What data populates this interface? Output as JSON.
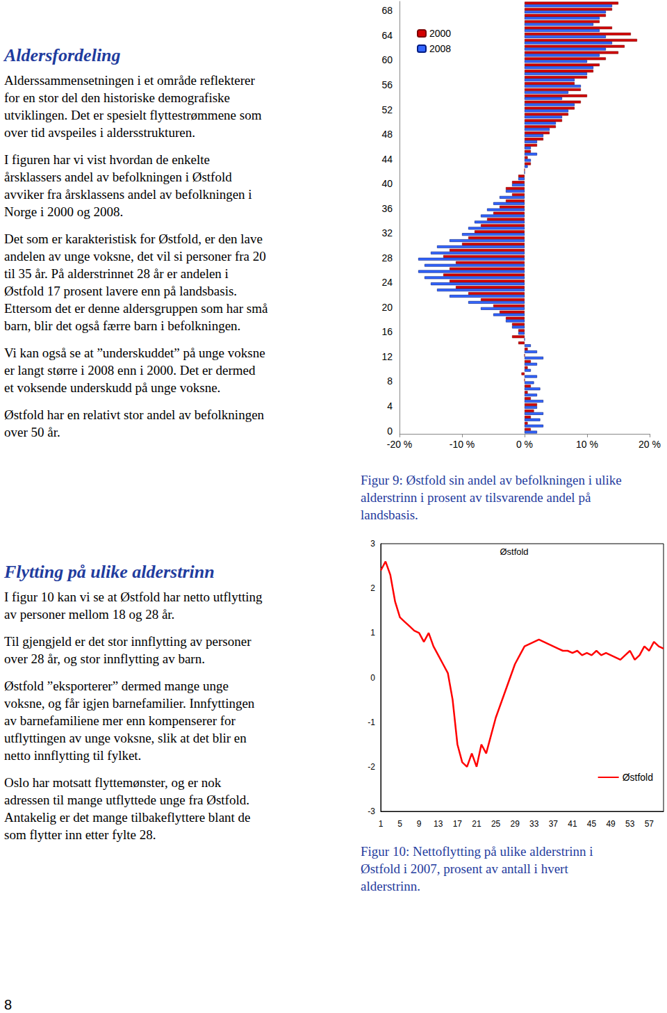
{
  "section1": {
    "heading": "Aldersfordeling",
    "paragraphs": [
      [
        "Alderssammensetningen i et område reflekterer",
        "for en stor del den historiske demografiske",
        "utviklingen. Det er spesielt flyttestrømmene som",
        "over tid avspeiles i aldersstrukturen."
      ],
      [
        "I figuren har vi vist hvordan de enkelte",
        "årsklassers andel av befolkningen i Østfold",
        "avviker fra årsklassens andel av befolkningen i",
        "Norge i 2000 og 2008."
      ],
      [
        "Det som er karakteristisk for Østfold, er den lave",
        "andelen av unge voksne, det vil si personer fra 20",
        "til 35 år. På alderstrinnet 28 år er andelen i",
        "Østfold 17 prosent lavere enn på landsbasis.",
        "Ettersom det er denne aldersgruppen som har små",
        "barn, blir det også færre barn i befolkningen."
      ],
      [
        "Vi kan også se at ”underskuddet” på unge voksne",
        "er langt større i 2008 enn i 2000. Det er dermed",
        "et voksende underskudd på unge voksne."
      ],
      [
        "Østfold har en relativt stor andel av befolkningen",
        "over 50 år."
      ]
    ]
  },
  "section2": {
    "heading": "Flytting på ulike alderstrinn",
    "paragraphs": [
      [
        "I figur 10 kan vi se at Østfold har netto utflytting",
        "av personer mellom 18 og 28 år."
      ],
      [
        "Til gjengjeld er det stor innflytting av personer",
        "over 28 år, og stor innflytting av barn."
      ],
      [
        "Østfold ”eksporterer” dermed mange unge",
        "voksne, og får igjen barnefamilier. Innfyttingen",
        "av barnefamiliene mer enn kompenserer for",
        "utflyttingen av unge voksne, slik at det blir en",
        "netto innflytting til fylket."
      ],
      [
        "Oslo har motsatt flyttemønster, og er nok",
        "adressen til mange utflyttede unge fra Østfold.",
        "Antakelig er det mange tilbakeflyttere blant de",
        "som flytter inn etter fylte 28."
      ]
    ]
  },
  "captions": [
    [
      "Figur 9: Østfold sin andel av befolkningen i ulike",
      "alderstrinn i prosent av tilsvarende andel på",
      "landsbasis."
    ],
    [
      "Figur 10: Nettoflytting på ulike alderstrinn i",
      "Østfold i 2007, prosent av antall i hvert",
      "alderstrinn."
    ]
  ],
  "page_number": "8",
  "chart_data": [
    {
      "type": "bar",
      "orientation": "horizontal",
      "categories": [
        0,
        null,
        null,
        null,
        4,
        null,
        null,
        null,
        8,
        null,
        null,
        null,
        12,
        null,
        null,
        null,
        16,
        null,
        null,
        null,
        20,
        null,
        null,
        null,
        24,
        null,
        null,
        null,
        28,
        null,
        null,
        null,
        32,
        null,
        null,
        null,
        36,
        null,
        null,
        null,
        40,
        null,
        null,
        null,
        44,
        null,
        null,
        null,
        48,
        null,
        null,
        null,
        52,
        null,
        null,
        null,
        56,
        null,
        null,
        null,
        60,
        null,
        null,
        null,
        64,
        null,
        null,
        null,
        68,
        null
      ],
      "series": [
        {
          "name": "2000",
          "color": "#d40000",
          "values": [
            1,
            0.5,
            1,
            1.5,
            2,
            1,
            0.5,
            1,
            0,
            -0.5,
            0.5,
            1,
            0,
            0.5,
            -1,
            -2,
            -1,
            -2,
            -3,
            -4,
            -5,
            -7,
            -9,
            -11,
            -12,
            -13,
            -12,
            -11,
            -13,
            -12,
            -10,
            -9,
            -8,
            -7,
            -6,
            -5,
            -4,
            -3,
            -2,
            -3,
            -2,
            -1,
            0,
            1,
            0.5,
            1,
            2,
            3,
            4,
            5,
            6,
            7,
            8,
            9,
            10,
            9,
            8,
            10,
            11,
            12,
            13,
            15,
            16,
            18,
            17,
            14,
            12,
            13,
            14,
            15
          ]
        },
        {
          "name": "2008",
          "color": "#3366ff",
          "values": [
            2,
            3,
            2.5,
            3,
            2,
            3,
            2,
            2.5,
            1.5,
            2,
            1,
            2,
            3,
            2,
            1,
            0,
            -1,
            -2,
            -3,
            -5,
            -7,
            -9,
            -12,
            -14,
            -15,
            -16,
            -17,
            -16,
            -17,
            -15,
            -14,
            -12,
            -10,
            -9,
            -8,
            -7,
            -6,
            -5,
            -4,
            -3,
            -2,
            -1,
            0,
            0.5,
            1,
            2,
            1,
            2,
            3,
            4,
            5,
            6,
            7,
            8,
            6,
            7,
            9,
            8,
            10,
            11,
            10,
            12,
            13,
            14,
            13,
            12,
            11,
            12,
            13,
            14
          ]
        }
      ],
      "xlim": [
        -20,
        20
      ],
      "xticks": [
        {
          "value": -20,
          "label": "-20 %"
        },
        {
          "value": -10,
          "label": "-10 %"
        },
        {
          "value": 0,
          "label": "0 %"
        },
        {
          "value": 10,
          "label": "10 %"
        },
        {
          "value": 20,
          "label": "20 %"
        }
      ],
      "legend": "top-left",
      "grid": false
    },
    {
      "type": "line",
      "title": "Østfold",
      "categories": [
        1,
        null,
        null,
        null,
        5,
        null,
        null,
        null,
        9,
        null,
        null,
        null,
        13,
        null,
        null,
        null,
        17,
        null,
        null,
        null,
        21,
        null,
        null,
        null,
        25,
        null,
        null,
        null,
        29,
        null,
        null,
        null,
        33,
        null,
        null,
        null,
        37,
        null,
        null,
        null,
        41,
        null,
        null,
        null,
        45,
        null,
        null,
        null,
        49,
        null,
        null,
        null,
        53,
        null,
        null,
        null,
        57,
        null,
        null,
        null
      ],
      "series": [
        {
          "name": "Østfold",
          "color": "#ff0000",
          "values": [
            2.4,
            2.6,
            2.3,
            1.7,
            1.35,
            1.25,
            1.15,
            1.05,
            1.0,
            0.8,
            1.0,
            0.7,
            0.5,
            0.3,
            0.1,
            -0.5,
            -1.5,
            -1.9,
            -2.0,
            -1.7,
            -2.0,
            -1.5,
            -1.7,
            -1.3,
            -0.9,
            -0.6,
            -0.3,
            0.0,
            0.3,
            0.5,
            0.7,
            0.75,
            0.8,
            0.85,
            0.8,
            0.75,
            0.7,
            0.65,
            0.6,
            0.6,
            0.55,
            0.6,
            0.5,
            0.55,
            0.5,
            0.6,
            0.5,
            0.55,
            0.5,
            0.45,
            0.4,
            0.5,
            0.6,
            0.4,
            0.5,
            0.7,
            0.6,
            0.8,
            0.7,
            0.65
          ]
        }
      ],
      "ylim": [
        -3,
        3
      ],
      "yticks": [
        -3,
        -2,
        -1,
        0,
        1,
        2,
        3
      ],
      "legend": "bottom-right",
      "grid": false
    }
  ]
}
